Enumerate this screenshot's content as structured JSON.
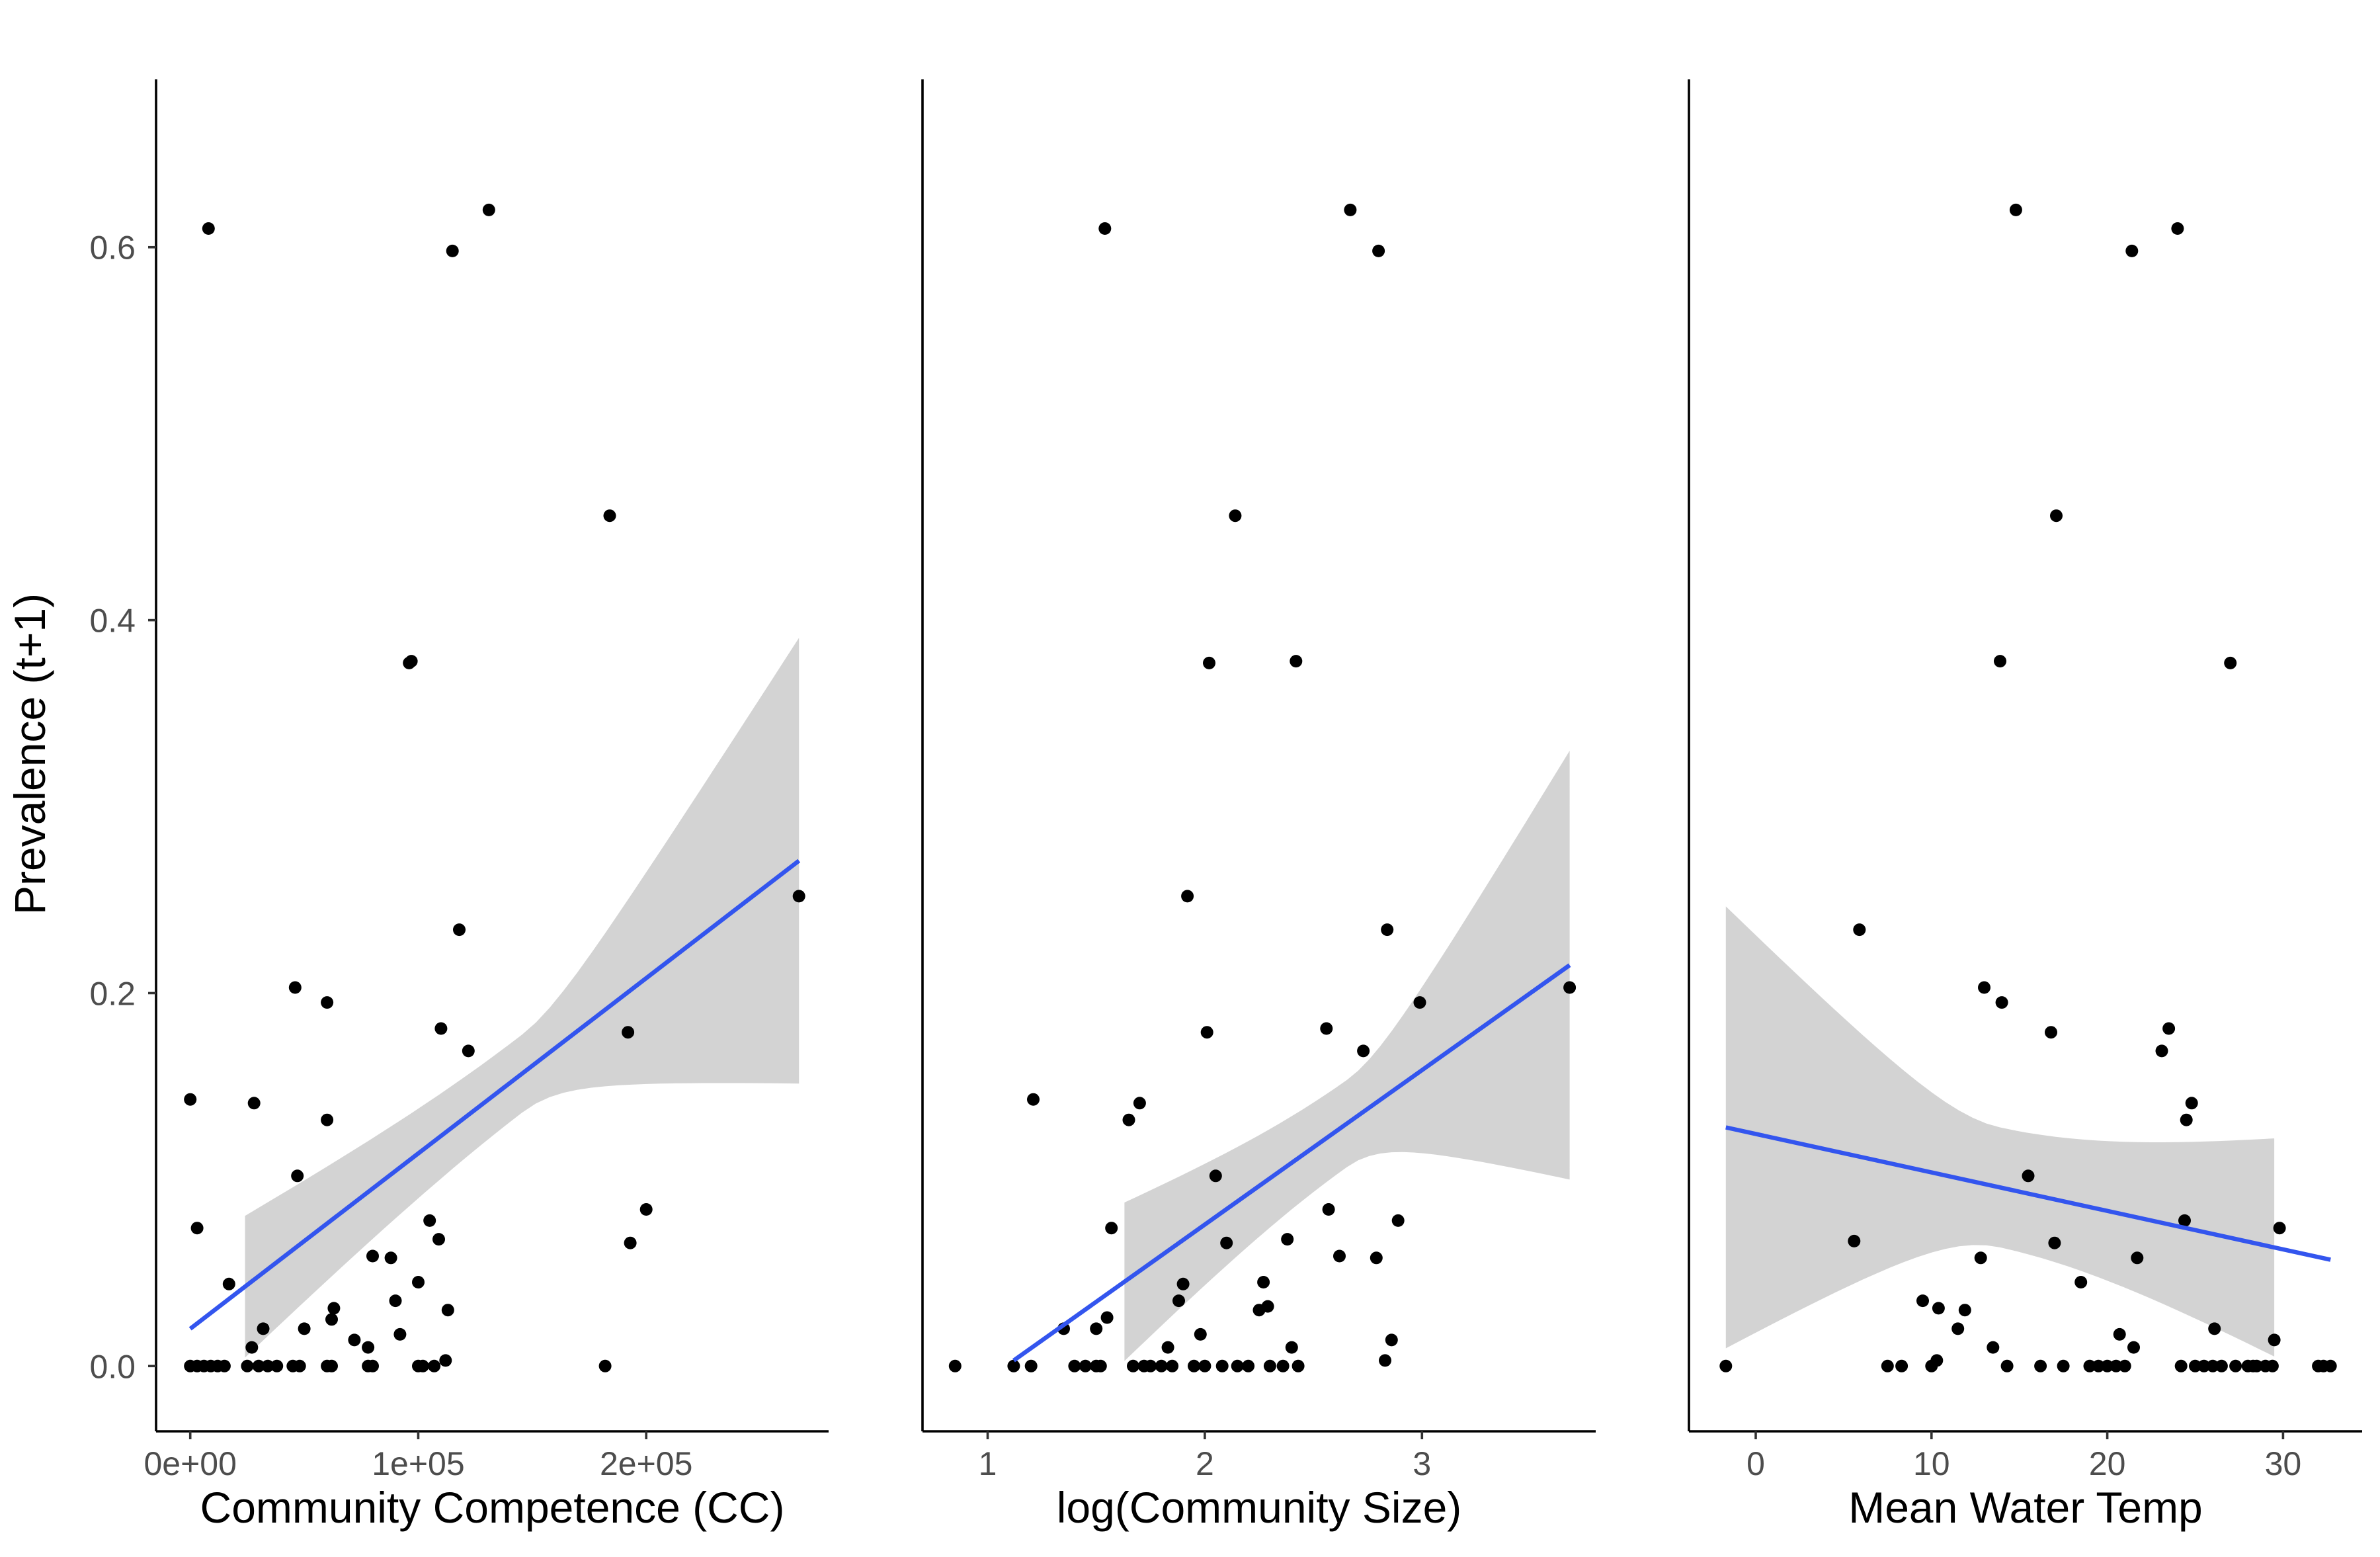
{
  "colors": {
    "point": "#000000",
    "smooth_line": "#3355ee",
    "ribbon": "#d3d3d3",
    "tick_text": "#4d4d4d"
  },
  "y_axis": {
    "label": "Prevalence (t+1)",
    "ticks": [
      "0.0",
      "0.2",
      "0.4",
      "0.6"
    ],
    "tick_values": [
      0,
      0.2,
      0.4,
      0.6
    ]
  },
  "chart_data": [
    {
      "type": "scatter",
      "xlabel": "Community Competence (CC)",
      "ylabel": "Prevalence (t+1)",
      "xlim": [
        -15000,
        280000
      ],
      "ylim": [
        -0.035,
        0.69
      ],
      "x_ticks": [
        0,
        100000,
        200000
      ],
      "x_tick_labels": [
        "0e+00",
        "1e+05",
        "2e+05"
      ],
      "grid": false,
      "points": [
        [
          0,
          0.143
        ],
        [
          3000,
          0.074
        ],
        [
          8000,
          0.61
        ],
        [
          17000,
          0.044
        ],
        [
          28000,
          0.141
        ],
        [
          46000,
          0.203
        ],
        [
          47000,
          0.102
        ],
        [
          60000,
          0.195
        ],
        [
          60000,
          0.132
        ],
        [
          32000,
          0.02
        ],
        [
          27000,
          0.01
        ],
        [
          50000,
          0.02
        ],
        [
          62000,
          0.025
        ],
        [
          63000,
          0.031
        ],
        [
          72000,
          0.014
        ],
        [
          78000,
          0.01
        ],
        [
          80000,
          0.059
        ],
        [
          88000,
          0.058
        ],
        [
          90000,
          0.035
        ],
        [
          92000,
          0.017
        ],
        [
          96000,
          0.377
        ],
        [
          97000,
          0.378
        ],
        [
          100000,
          0.045
        ],
        [
          105000,
          0.078
        ],
        [
          109000,
          0.068
        ],
        [
          110000,
          0.181
        ],
        [
          112000,
          0.003
        ],
        [
          113000,
          0.03
        ],
        [
          115000,
          0.598
        ],
        [
          118000,
          0.234
        ],
        [
          122000,
          0.169
        ],
        [
          131000,
          0.62
        ],
        [
          184000,
          0.456
        ],
        [
          182000,
          0
        ],
        [
          192000,
          0.179
        ],
        [
          193000,
          0.066
        ],
        [
          200000,
          0.084
        ],
        [
          267000,
          0.252
        ],
        [
          0,
          0
        ],
        [
          3000,
          0
        ],
        [
          6000,
          0
        ],
        [
          9000,
          0
        ],
        [
          12000,
          0
        ],
        [
          15000,
          0
        ],
        [
          25000,
          0
        ],
        [
          30000,
          0
        ],
        [
          34000,
          0
        ],
        [
          38000,
          0
        ],
        [
          45000,
          0
        ],
        [
          48000,
          0
        ],
        [
          60000,
          0
        ],
        [
          62000,
          0
        ],
        [
          78000,
          0
        ],
        [
          80000,
          0
        ],
        [
          100000,
          0
        ],
        [
          102000,
          0
        ],
        [
          107000,
          0
        ]
      ],
      "fit": {
        "x": [
          0,
          267000
        ],
        "y": [
          0.02,
          0.271
        ]
      },
      "ci": {
        "x": [
          24000,
          267000
        ],
        "lower": [
          0.005,
          0.151
        ],
        "upper": [
          0.081,
          0.39
        ]
      }
    },
    {
      "type": "scatter",
      "xlabel": "log(Community Size)",
      "ylabel": "Prevalence (t+1)",
      "xlim": [
        0.7,
        3.8
      ],
      "ylim": [
        -0.035,
        0.69
      ],
      "x_ticks": [
        1,
        2,
        3
      ],
      "x_tick_labels": [
        "1",
        "2",
        "3"
      ],
      "grid": false,
      "points": [
        [
          0.85,
          0
        ],
        [
          1.12,
          0
        ],
        [
          1.2,
          0
        ],
        [
          1.21,
          0.143
        ],
        [
          1.35,
          0.02
        ],
        [
          1.4,
          0
        ],
        [
          1.45,
          0
        ],
        [
          1.5,
          0
        ],
        [
          1.52,
          0
        ],
        [
          1.5,
          0.02
        ],
        [
          1.55,
          0.026
        ],
        [
          1.54,
          0.61
        ],
        [
          1.57,
          0.074
        ],
        [
          1.65,
          0.132
        ],
        [
          1.67,
          0
        ],
        [
          1.7,
          0.141
        ],
        [
          1.72,
          0
        ],
        [
          1.75,
          0
        ],
        [
          1.8,
          0
        ],
        [
          1.83,
          0.01
        ],
        [
          1.85,
          0
        ],
        [
          1.88,
          0.035
        ],
        [
          1.9,
          0.044
        ],
        [
          1.92,
          0.252
        ],
        [
          1.95,
          0
        ],
        [
          1.98,
          0.017
        ],
        [
          2.0,
          0
        ],
        [
          2.01,
          0.179
        ],
        [
          2.02,
          0.377
        ],
        [
          2.05,
          0.102
        ],
        [
          2.08,
          0
        ],
        [
          2.1,
          0.066
        ],
        [
          2.14,
          0.456
        ],
        [
          2.15,
          0
        ],
        [
          2.2,
          0
        ],
        [
          2.25,
          0.03
        ],
        [
          2.27,
          0.045
        ],
        [
          2.29,
          0.032
        ],
        [
          2.3,
          0
        ],
        [
          2.36,
          0
        ],
        [
          2.38,
          0.068
        ],
        [
          2.4,
          0.01
        ],
        [
          2.42,
          0.378
        ],
        [
          2.43,
          0
        ],
        [
          2.56,
          0.181
        ],
        [
          2.57,
          0.084
        ],
        [
          2.62,
          0.059
        ],
        [
          2.67,
          0.62
        ],
        [
          2.73,
          0.169
        ],
        [
          2.79,
          0.058
        ],
        [
          2.8,
          0.598
        ],
        [
          2.83,
          0.003
        ],
        [
          2.84,
          0.234
        ],
        [
          2.86,
          0.014
        ],
        [
          2.89,
          0.078
        ],
        [
          2.99,
          0.195
        ],
        [
          3.68,
          0.203
        ]
      ],
      "fit": {
        "x": [
          1.12,
          3.68
        ],
        "y": [
          0.003,
          0.215
        ]
      },
      "ci": {
        "x": [
          1.63,
          3.68
        ],
        "lower": [
          0.003,
          0.1
        ],
        "upper": [
          0.088,
          0.33
        ]
      }
    },
    {
      "type": "scatter",
      "xlabel": "Mean Water Temp",
      "ylabel": "Prevalence (t+1)",
      "xlim": [
        -3.8,
        34.5
      ],
      "ylim": [
        -0.035,
        0.69
      ],
      "x_ticks": [
        0,
        10,
        20,
        30
      ],
      "x_tick_labels": [
        "0",
        "10",
        "20",
        "30"
      ],
      "grid": false,
      "points": [
        [
          -1.7,
          0
        ],
        [
          5.6,
          0.067
        ],
        [
          5.9,
          0.234
        ],
        [
          7.5,
          0
        ],
        [
          8.3,
          0
        ],
        [
          9.5,
          0.035
        ],
        [
          10.0,
          0
        ],
        [
          10.3,
          0.003
        ],
        [
          10.4,
          0.031
        ],
        [
          11.5,
          0.02
        ],
        [
          11.9,
          0.03
        ],
        [
          12.8,
          0.058
        ],
        [
          13.0,
          0.203
        ],
        [
          13.5,
          0.01
        ],
        [
          13.9,
          0.378
        ],
        [
          14.0,
          0.195
        ],
        [
          14.3,
          0
        ],
        [
          14.8,
          0.62
        ],
        [
          15.5,
          0.102
        ],
        [
          16.2,
          0
        ],
        [
          16.8,
          0.179
        ],
        [
          17.0,
          0.066
        ],
        [
          17.1,
          0.456
        ],
        [
          17.5,
          0
        ],
        [
          18.5,
          0.045
        ],
        [
          19.0,
          0
        ],
        [
          19.5,
          0
        ],
        [
          20.0,
          0
        ],
        [
          20.5,
          0
        ],
        [
          20.7,
          0.017
        ],
        [
          21.0,
          0
        ],
        [
          21.4,
          0.598
        ],
        [
          21.5,
          0.01
        ],
        [
          21.7,
          0.058
        ],
        [
          23.1,
          0.169
        ],
        [
          23.5,
          0.181
        ],
        [
          24.0,
          0.61
        ],
        [
          24.2,
          0
        ],
        [
          24.4,
          0.078
        ],
        [
          24.5,
          0.132
        ],
        [
          24.8,
          0.141
        ],
        [
          25.0,
          0
        ],
        [
          25.5,
          0
        ],
        [
          26.0,
          0
        ],
        [
          26.1,
          0.02
        ],
        [
          26.5,
          0
        ],
        [
          27.0,
          0.377
        ],
        [
          27.3,
          0
        ],
        [
          28.0,
          0
        ],
        [
          28.3,
          0
        ],
        [
          28.5,
          0
        ],
        [
          29.0,
          0
        ],
        [
          29.4,
          0
        ],
        [
          29.5,
          0.014
        ],
        [
          29.8,
          0.074
        ],
        [
          32.0,
          0
        ],
        [
          32.3,
          0
        ],
        [
          32.7,
          0
        ]
      ],
      "fit": {
        "x": [
          -1.7,
          32.7
        ],
        "y": [
          0.128,
          0.057
        ]
      },
      "ci": {
        "x": [
          -1.7,
          29.5
        ],
        "lower": [
          0.01,
          0.008
        ],
        "upper": [
          0.247,
          0.125
        ]
      }
    }
  ]
}
